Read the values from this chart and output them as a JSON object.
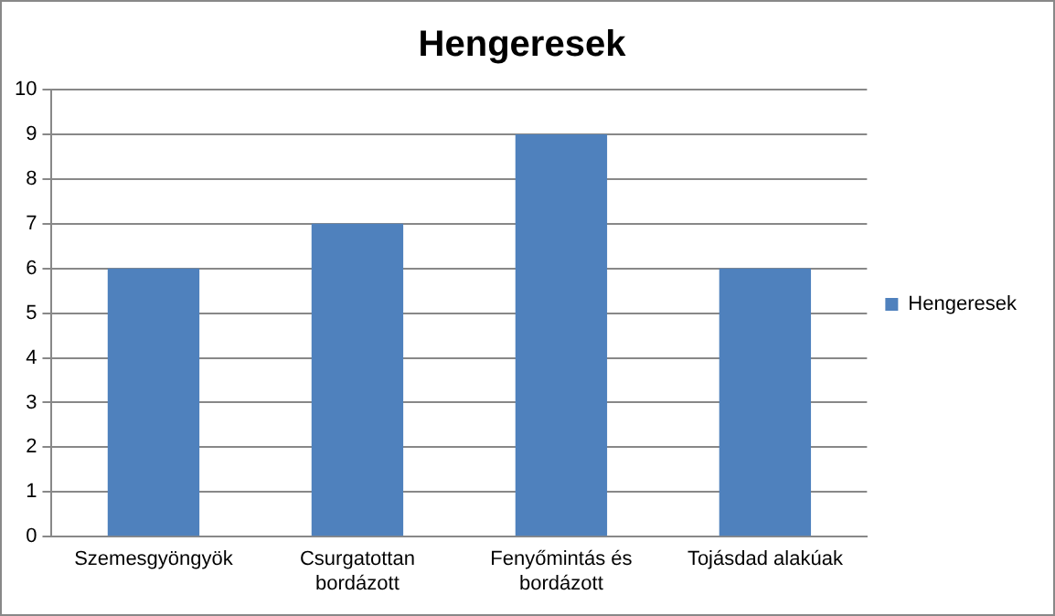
{
  "chart_data": {
    "type": "bar",
    "title": "Hengeresek",
    "categories": [
      "Szemesgyöngyök",
      "Csurgatottan bordázott",
      "Fenyőmintás és bordázott",
      "Tojásdad alakúak"
    ],
    "series": [
      {
        "name": "Hengeresek",
        "color": "#4f81bd",
        "values": [
          6,
          7,
          9,
          6
        ]
      }
    ],
    "ylim": [
      0,
      10
    ],
    "yticks": [
      0,
      1,
      2,
      3,
      4,
      5,
      6,
      7,
      8,
      9,
      10
    ],
    "grid": "y",
    "legend": "right"
  }
}
